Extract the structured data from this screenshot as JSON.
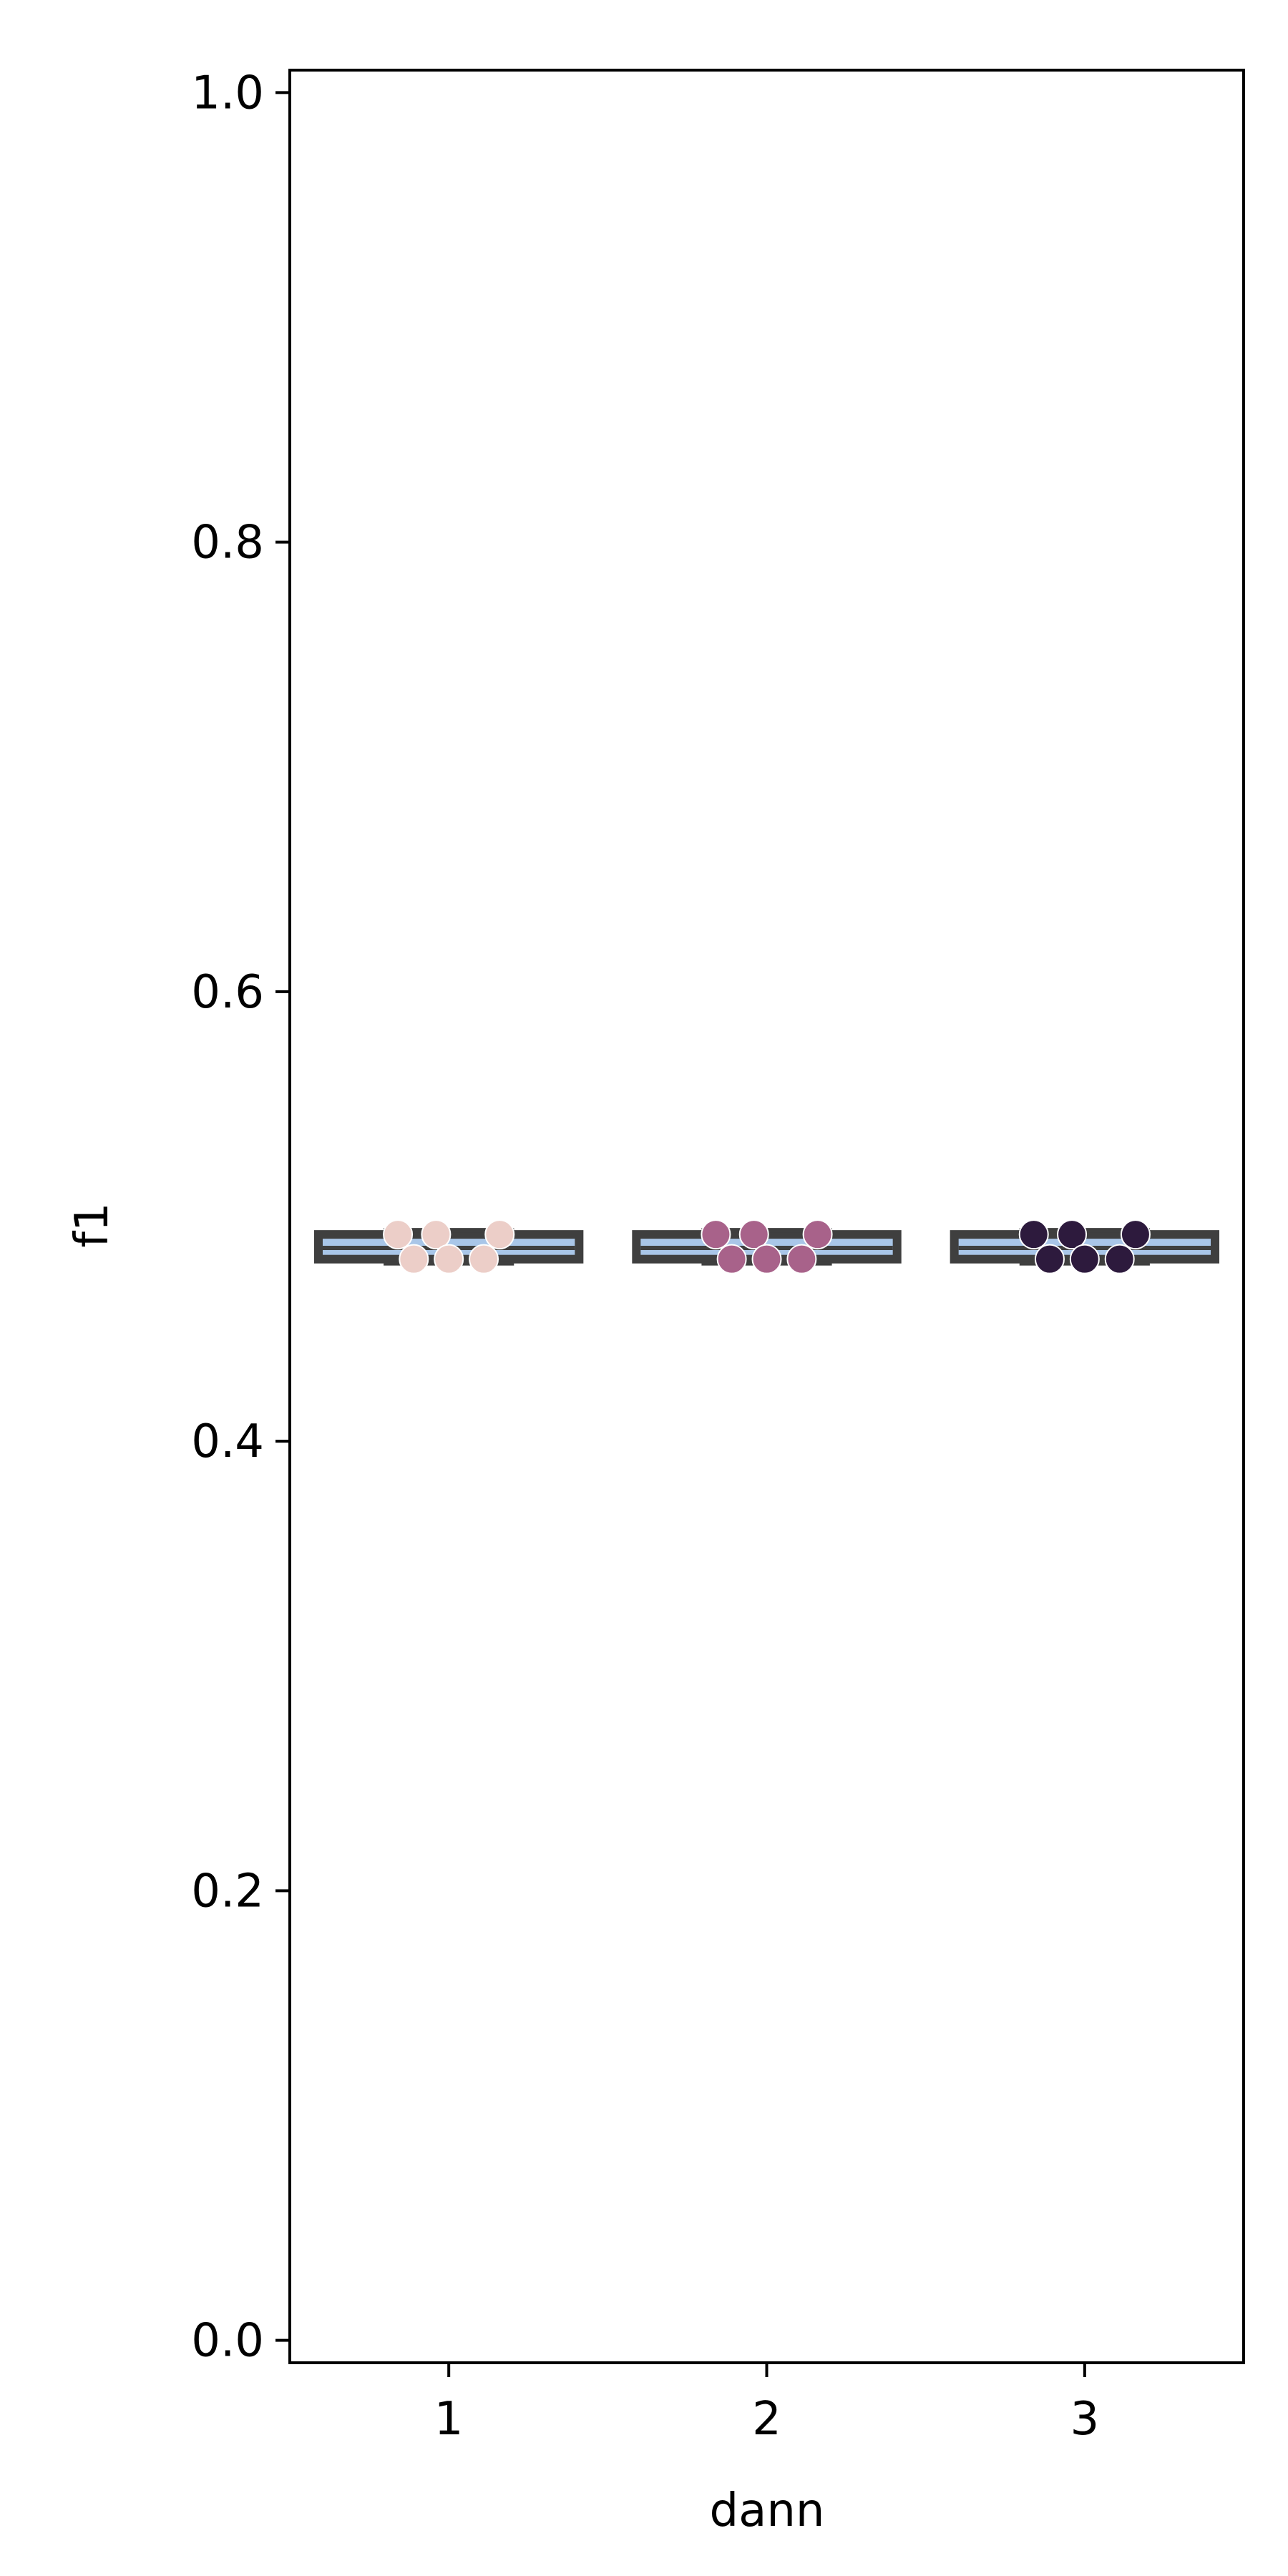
{
  "chart_data": {
    "type": "box",
    "title": "",
    "xlabel": "dann",
    "ylabel": "f1",
    "categories": [
      "1",
      "2",
      "3"
    ],
    "ylim": [
      -0.01,
      1.01
    ],
    "yticks": [
      0.0,
      0.2,
      0.4,
      0.6,
      0.8,
      1.0
    ],
    "ytick_labels": [
      "0.0",
      "0.2",
      "0.4",
      "0.6",
      "0.8",
      "1.0"
    ],
    "grid": false,
    "legend": "none",
    "boxes": [
      {
        "category": "1",
        "min": 0.481,
        "q1": 0.481,
        "median": 0.486,
        "q3": 0.492,
        "max": 0.492
      },
      {
        "category": "2",
        "min": 0.481,
        "q1": 0.481,
        "median": 0.486,
        "q3": 0.492,
        "max": 0.492
      },
      {
        "category": "3",
        "min": 0.481,
        "q1": 0.481,
        "median": 0.486,
        "q3": 0.492,
        "max": 0.492
      }
    ],
    "box_fill_color": "#a9c6e8",
    "box_edge_color": "#3f3f3f",
    "series": [
      {
        "category": "1",
        "color": "#eccec8",
        "values": [
          0.492,
          0.492,
          0.492,
          0.481,
          0.481,
          0.481
        ]
      },
      {
        "category": "2",
        "color": "#a8628a",
        "values": [
          0.492,
          0.492,
          0.492,
          0.481,
          0.481,
          0.481
        ]
      },
      {
        "category": "3",
        "color": "#2d1a3d",
        "values": [
          0.492,
          0.492,
          0.492,
          0.481,
          0.481,
          0.481
        ]
      }
    ]
  }
}
